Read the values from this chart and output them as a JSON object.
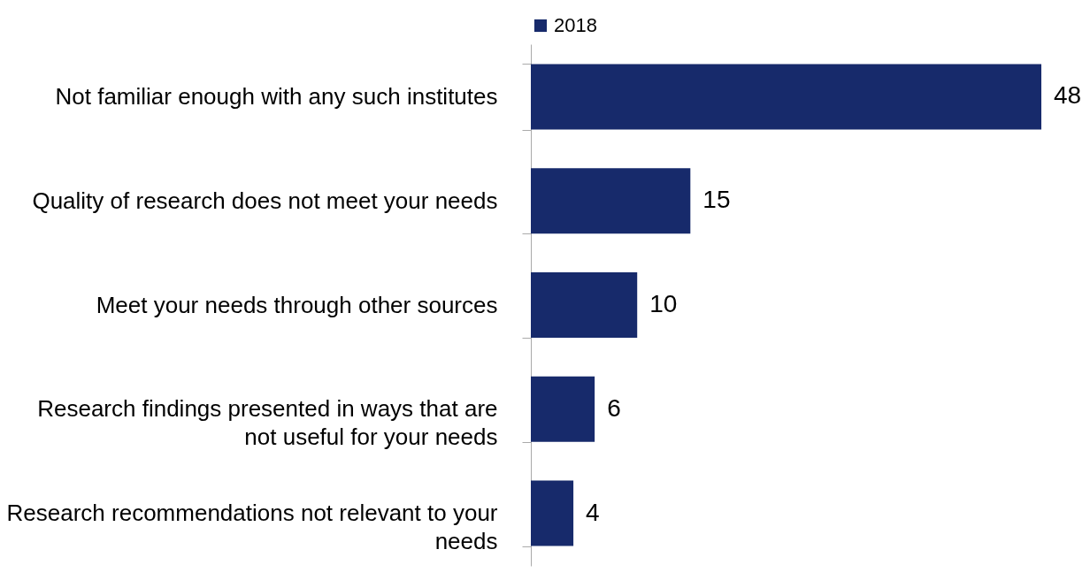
{
  "chart_data": {
    "type": "bar",
    "orientation": "horizontal",
    "categories": [
      "Not familiar enough with any such institutes",
      "Quality of research does not meet your needs",
      "Meet your needs through other sources",
      "Research findings presented in ways that are not useful for your needs",
      "Research recommendations not relevant to your needs"
    ],
    "series": [
      {
        "name": "2018",
        "color": "#172a6b",
        "values": [
          48,
          15,
          10,
          6,
          4
        ]
      }
    ],
    "data_labels": true,
    "legend": "top"
  }
}
